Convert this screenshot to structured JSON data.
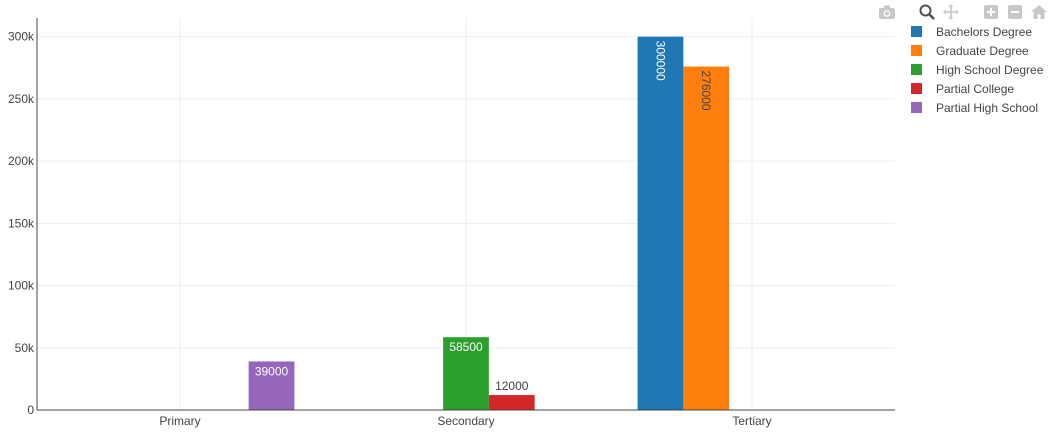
{
  "modebar": {
    "icons": [
      "camera-icon",
      "zoom-icon",
      "pan-icon",
      "zoom-in-icon",
      "zoom-out-icon",
      "reset-axes-icon"
    ]
  },
  "chart_data": {
    "type": "bar",
    "barmode": "group",
    "categories": [
      "Primary",
      "Secondary",
      "Tertiary"
    ],
    "ylim": [
      0,
      315000
    ],
    "yticks": [
      0,
      50000,
      100000,
      150000,
      200000,
      250000,
      300000
    ],
    "ytick_labels": [
      "0",
      "50k",
      "100k",
      "150k",
      "200k",
      "250k",
      "300k"
    ],
    "grid": true,
    "legend_position": "top-right",
    "series": [
      {
        "name": "Bachelors Degree",
        "color": "#1f77b4",
        "values": [
          null,
          null,
          300000
        ],
        "labels": [
          "",
          "",
          "300000"
        ]
      },
      {
        "name": "Graduate Degree",
        "color": "#ff7f0e",
        "values": [
          null,
          null,
          276000
        ],
        "labels": [
          "",
          "",
          "276000"
        ]
      },
      {
        "name": "High School Degree",
        "color": "#2ca02c",
        "values": [
          null,
          58500,
          null
        ],
        "labels": [
          "",
          "58500",
          ""
        ]
      },
      {
        "name": "Partial College",
        "color": "#d62728",
        "values": [
          null,
          12000,
          null
        ],
        "labels": [
          "",
          "12000",
          ""
        ]
      },
      {
        "name": "Partial High School",
        "color": "#9467bd",
        "values": [
          39000,
          null,
          null
        ],
        "labels": [
          "39000",
          "",
          ""
        ]
      }
    ]
  }
}
